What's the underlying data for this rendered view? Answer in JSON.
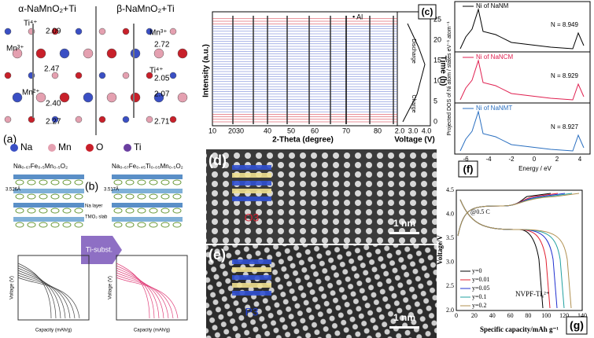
{
  "panel_a": {
    "label": "(a)",
    "title_left": "α-NaMnO₂+Ti",
    "title_right": "β-NaMnO₂+Ti",
    "labels_left": [
      "Ti⁴⁺",
      "2.09",
      "Mn³⁺",
      "2.47",
      "Mn²⁺",
      "2.40",
      "2.27"
    ],
    "labels_right": [
      "Mn³⁺",
      "2.72",
      "Ti⁴⁺",
      "2.05",
      "2.07",
      "2.71"
    ],
    "legend": [
      "Na",
      "Mn",
      "O",
      "Ti"
    ]
  },
  "panel_b": {
    "label": "(b)",
    "formula_left": "Na₀.₆₇Fe₀.₅Mn₀.₅O₂",
    "formula_right": "Na₀.₆₇Fe₀.₄₅Ti₀.₀₅Mn₀.₅O₂",
    "spacing_left": "3.526Å",
    "spacing_right": "3.517Å",
    "layers": [
      "Na layer",
      "TMO₂ slab"
    ],
    "arrow": "Ti-subst.",
    "y_label": "Voltage (V)",
    "x_label": "Capacity (mAh/g)"
  },
  "panel_c": {
    "label": "(c)",
    "y_label": "Intensity (a.u.)",
    "x_label": "2-Theta (degree)",
    "x_ticks": [
      "10",
      "2030",
      "40",
      "50",
      "60",
      "70",
      "80"
    ],
    "legend": "• Al",
    "y2_label": "Time (h)",
    "y2_ticks": [
      "0",
      "5",
      "10",
      "15",
      "20",
      "25"
    ],
    "x2_label": "Voltage (V)",
    "x2_ticks": [
      "2.0",
      "3.0",
      "4.0"
    ],
    "annotations": [
      "Discharge",
      "Charge"
    ]
  },
  "panel_d": {
    "label": "(d)",
    "phase": "O3",
    "scale": "1 nm"
  },
  "panel_e": {
    "label": "(e)",
    "phase": "P3",
    "scale": "1 nm"
  },
  "panel_f": {
    "label": "(f)",
    "y_label": "Projected DOS of Ni atom / states eV⁻¹ atom⁻¹",
    "x_label": "Energy / eV",
    "x_ticks": [
      "-6",
      "-4",
      "-2",
      "0",
      "2",
      "4"
    ],
    "curves": [
      {
        "name": "Ni of NaNM",
        "N": "N = 8.949"
      },
      {
        "name": "Ni of NaNCM",
        "N": "N = 8.929"
      },
      {
        "name": "Ni of NaNMT",
        "N": "N = 8.927"
      }
    ]
  },
  "panel_g": {
    "label": "(g)",
    "y_label": "Voltage/V",
    "x_label": "Specific capacity/mAh g⁻¹",
    "rate": "@0.5 C",
    "compound": "NVPF-Tiᵧ²⁺",
    "x_ticks": [
      "0",
      "20",
      "40",
      "60",
      "80",
      "100",
      "120",
      "140"
    ],
    "y_ticks": [
      "2.0",
      "2.5",
      "3.0",
      "3.5",
      "4.0",
      "4.5"
    ],
    "legend": [
      "y=0",
      "y=0.01",
      "y=0.05",
      "y=0.1",
      "y=0.2"
    ]
  }
}
